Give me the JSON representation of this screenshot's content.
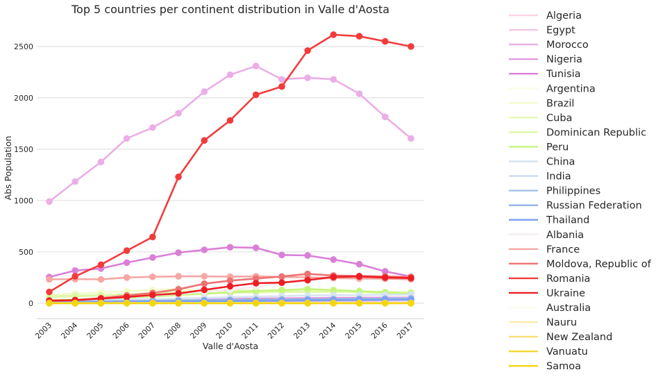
{
  "chart_data": {
    "type": "line",
    "title": "Top 5 countries per continent distribution in Valle d'Aosta",
    "xlabel": "Valle d'Aosta",
    "ylabel": "Abs Population",
    "categories": [
      "2003",
      "2004",
      "2005",
      "2006",
      "2007",
      "2008",
      "2009",
      "2010",
      "2011",
      "2012",
      "2013",
      "2014",
      "2015",
      "2016",
      "2017"
    ],
    "yticks": [
      0,
      500,
      1000,
      1500,
      2000,
      2500
    ],
    "ylim": [
      -150,
      2750
    ],
    "grid": "horizontal",
    "legend_position": "right-outside",
    "series": [
      {
        "name": "Algeria",
        "color": "#f9d5e5",
        "values": [
          3,
          4,
          4,
          5,
          5,
          6,
          6,
          6,
          6,
          7,
          7,
          7,
          7,
          6,
          6
        ]
      },
      {
        "name": "Egypt",
        "color": "#f2c6e8",
        "values": [
          10,
          12,
          14,
          16,
          17,
          18,
          19,
          19,
          20,
          20,
          21,
          21,
          20,
          20,
          19
        ]
      },
      {
        "name": "Morocco",
        "color": "#ebaee6",
        "values": [
          990,
          1185,
          1375,
          1605,
          1710,
          1850,
          2060,
          2225,
          2310,
          2180,
          2195,
          2180,
          2040,
          1815,
          1605
        ]
      },
      {
        "name": "Nigeria",
        "color": "#e29be0",
        "values": [
          15,
          18,
          22,
          26,
          30,
          34,
          38,
          42,
          46,
          48,
          50,
          52,
          54,
          55,
          56
        ]
      },
      {
        "name": "Tunisia",
        "color": "#da7fd8",
        "values": [
          255,
          318,
          338,
          395,
          445,
          492,
          520,
          545,
          540,
          470,
          465,
          425,
          380,
          310,
          260
        ]
      },
      {
        "name": "Argentina",
        "color": "#fdfbe8",
        "values": [
          25,
          27,
          28,
          29,
          30,
          31,
          31,
          32,
          32,
          33,
          33,
          32,
          31,
          30,
          30
        ]
      },
      {
        "name": "Brazil",
        "color": "#f3fbc9",
        "values": [
          80,
          95,
          105,
          118,
          128,
          142,
          118,
          118,
          125,
          130,
          130,
          122,
          118,
          108,
          102
        ]
      },
      {
        "name": "Cuba",
        "color": "#e6f9b5",
        "values": [
          60,
          66,
          72,
          78,
          84,
          90,
          96,
          100,
          104,
          108,
          110,
          112,
          112,
          110,
          108
        ]
      },
      {
        "name": "Dominican Republic",
        "color": "#ddf7a7",
        "values": [
          68,
          74,
          80,
          86,
          100,
          108,
          118,
          125,
          120,
          115,
          110,
          112,
          108,
          100,
          95
        ]
      },
      {
        "name": "Peru",
        "color": "#c4f57a",
        "values": [
          30,
          36,
          45,
          55,
          65,
          80,
          92,
          105,
          118,
          128,
          138,
          128,
          118,
          105,
          95
        ]
      },
      {
        "name": "China",
        "color": "#d7e3f3",
        "values": [
          20,
          25,
          30,
          35,
          40,
          45,
          52,
          58,
          64,
          70,
          75,
          78,
          80,
          82,
          84
        ]
      },
      {
        "name": "India",
        "color": "#c9d8ef",
        "values": [
          5,
          7,
          9,
          11,
          13,
          15,
          18,
          22,
          26,
          30,
          34,
          38,
          42,
          46,
          50
        ]
      },
      {
        "name": "Philippines",
        "color": "#a4c1ec",
        "values": [
          8,
          10,
          12,
          14,
          16,
          18,
          20,
          22,
          24,
          26,
          28,
          30,
          32,
          34,
          36
        ]
      },
      {
        "name": "Russian Federation",
        "color": "#8fb3e4",
        "values": [
          12,
          15,
          18,
          21,
          24,
          27,
          30,
          32,
          34,
          36,
          38,
          40,
          42,
          44,
          46
        ]
      },
      {
        "name": "Thailand",
        "color": "#7b9ef0",
        "values": [
          6,
          8,
          10,
          12,
          14,
          16,
          18,
          20,
          22,
          24,
          26,
          28,
          30,
          32,
          34
        ]
      },
      {
        "name": "Albania",
        "color": "#f5eef2",
        "values": [
          25,
          30,
          45,
          60,
          75,
          90,
          110,
          130,
          160,
          195,
          220,
          240,
          250,
          255,
          258
        ]
      },
      {
        "name": "France",
        "color": "#f6a6a3",
        "values": [
          232,
          235,
          232,
          250,
          257,
          262,
          262,
          258,
          262,
          255,
          252,
          245,
          240,
          238,
          232
        ]
      },
      {
        "name": "Moldova, Republic of",
        "color": "#ee7272",
        "values": [
          20,
          30,
          50,
          75,
          100,
          135,
          190,
          220,
          240,
          260,
          285,
          270,
          265,
          260,
          255
        ]
      },
      {
        "name": "Romania",
        "color": "#f23b3b",
        "values": [
          110,
          262,
          375,
          512,
          645,
          1230,
          1585,
          1780,
          2030,
          2110,
          2460,
          2615,
          2600,
          2550,
          2500
        ]
      },
      {
        "name": "Ukraine",
        "color": "#ea1f25",
        "values": [
          25,
          30,
          45,
          60,
          80,
          95,
          130,
          165,
          195,
          200,
          225,
          255,
          260,
          250,
          245
        ]
      },
      {
        "name": "Australia",
        "color": "#fefcf0",
        "values": [
          2,
          2,
          2,
          2,
          3,
          3,
          3,
          3,
          3,
          3,
          3,
          3,
          3,
          3,
          3
        ]
      },
      {
        "name": "Nauru",
        "color": "#fbe8a6",
        "values": [
          0,
          0,
          0,
          0,
          0,
          0,
          0,
          0,
          0,
          0,
          0,
          0,
          0,
          0,
          0
        ]
      },
      {
        "name": "New Zealand",
        "color": "#f6e07a",
        "values": [
          1,
          1,
          1,
          1,
          1,
          1,
          1,
          1,
          1,
          1,
          1,
          1,
          1,
          1,
          1
        ]
      },
      {
        "name": "Vanuatu",
        "color": "#f5d630",
        "values": [
          0,
          0,
          0,
          0,
          0,
          0,
          0,
          0,
          0,
          0,
          0,
          0,
          0,
          0,
          0
        ]
      },
      {
        "name": "Samoa",
        "color": "#f5d50f",
        "values": [
          0,
          0,
          0,
          0,
          0,
          0,
          0,
          0,
          0,
          0,
          0,
          0,
          0,
          0,
          0
        ]
      }
    ]
  }
}
